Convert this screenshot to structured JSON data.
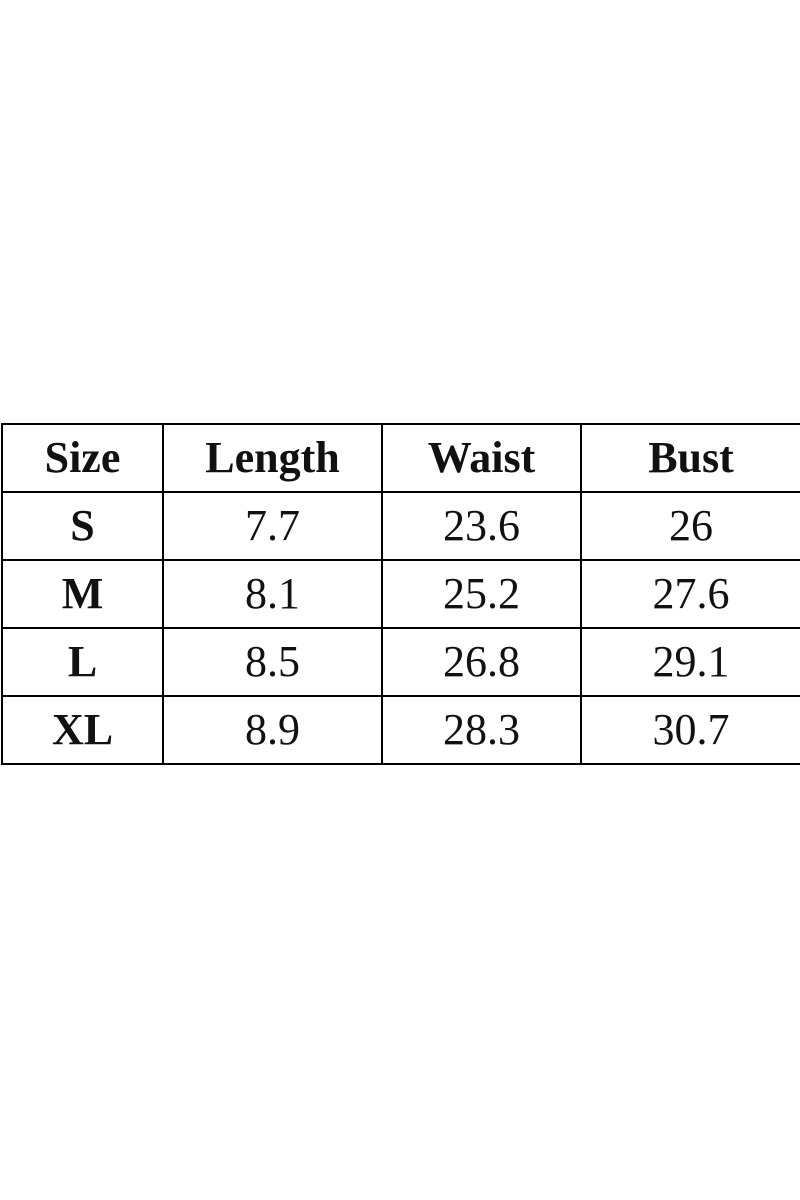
{
  "table": {
    "header": [
      "Size",
      "Length",
      "Waist",
      "Bust"
    ],
    "rows": [
      [
        "S",
        "7.7",
        "23.6",
        "26"
      ],
      [
        "M",
        "8.1",
        "25.2",
        "27.6"
      ],
      [
        "L",
        "8.5",
        "26.8",
        "29.1"
      ],
      [
        "XL",
        "8.9",
        "28.3",
        "30.7"
      ]
    ]
  }
}
